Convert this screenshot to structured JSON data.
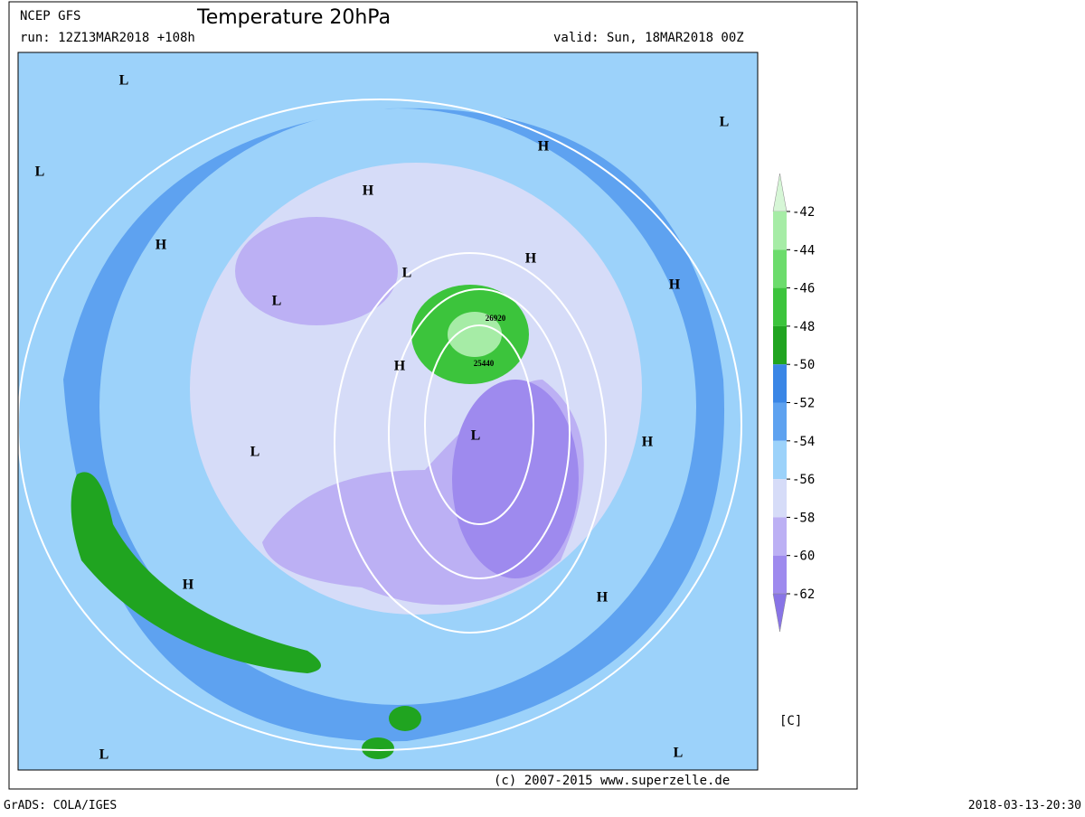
{
  "header": {
    "model": "NCEP GFS",
    "title": "Temperature 20hPa",
    "run": "run: 12Z13MAR2018 +108h",
    "valid": "valid: Sun, 18MAR2018 00Z"
  },
  "map": {
    "pressure_centers": [
      "L",
      "L",
      "H",
      "H",
      "H",
      "L",
      "H",
      "L",
      "H",
      "H",
      "L",
      "L",
      "H",
      "H",
      "H",
      "L",
      "L",
      "L"
    ],
    "contour_labels": [
      "26920",
      "25440"
    ],
    "copyright": "(c) 2007-2015 www.superzelle.de"
  },
  "colorbar": {
    "ticks": [
      -42,
      -44,
      -46,
      -48,
      -50,
      -52,
      -54,
      -56,
      -58,
      -60,
      -62
    ],
    "colors": [
      "#d6f6d6",
      "#a6eca6",
      "#6cdc6c",
      "#3cc43c",
      "#20a420",
      "#3a86e6",
      "#5ea2f0",
      "#9cd2fa",
      "#d6dcf8",
      "#bcb0f4",
      "#9e8aee",
      "#8874e6"
    ],
    "unit": "[C]"
  },
  "footer": {
    "left": "GrADS: COLA/IGES",
    "right": "2018-03-13-20:30"
  }
}
